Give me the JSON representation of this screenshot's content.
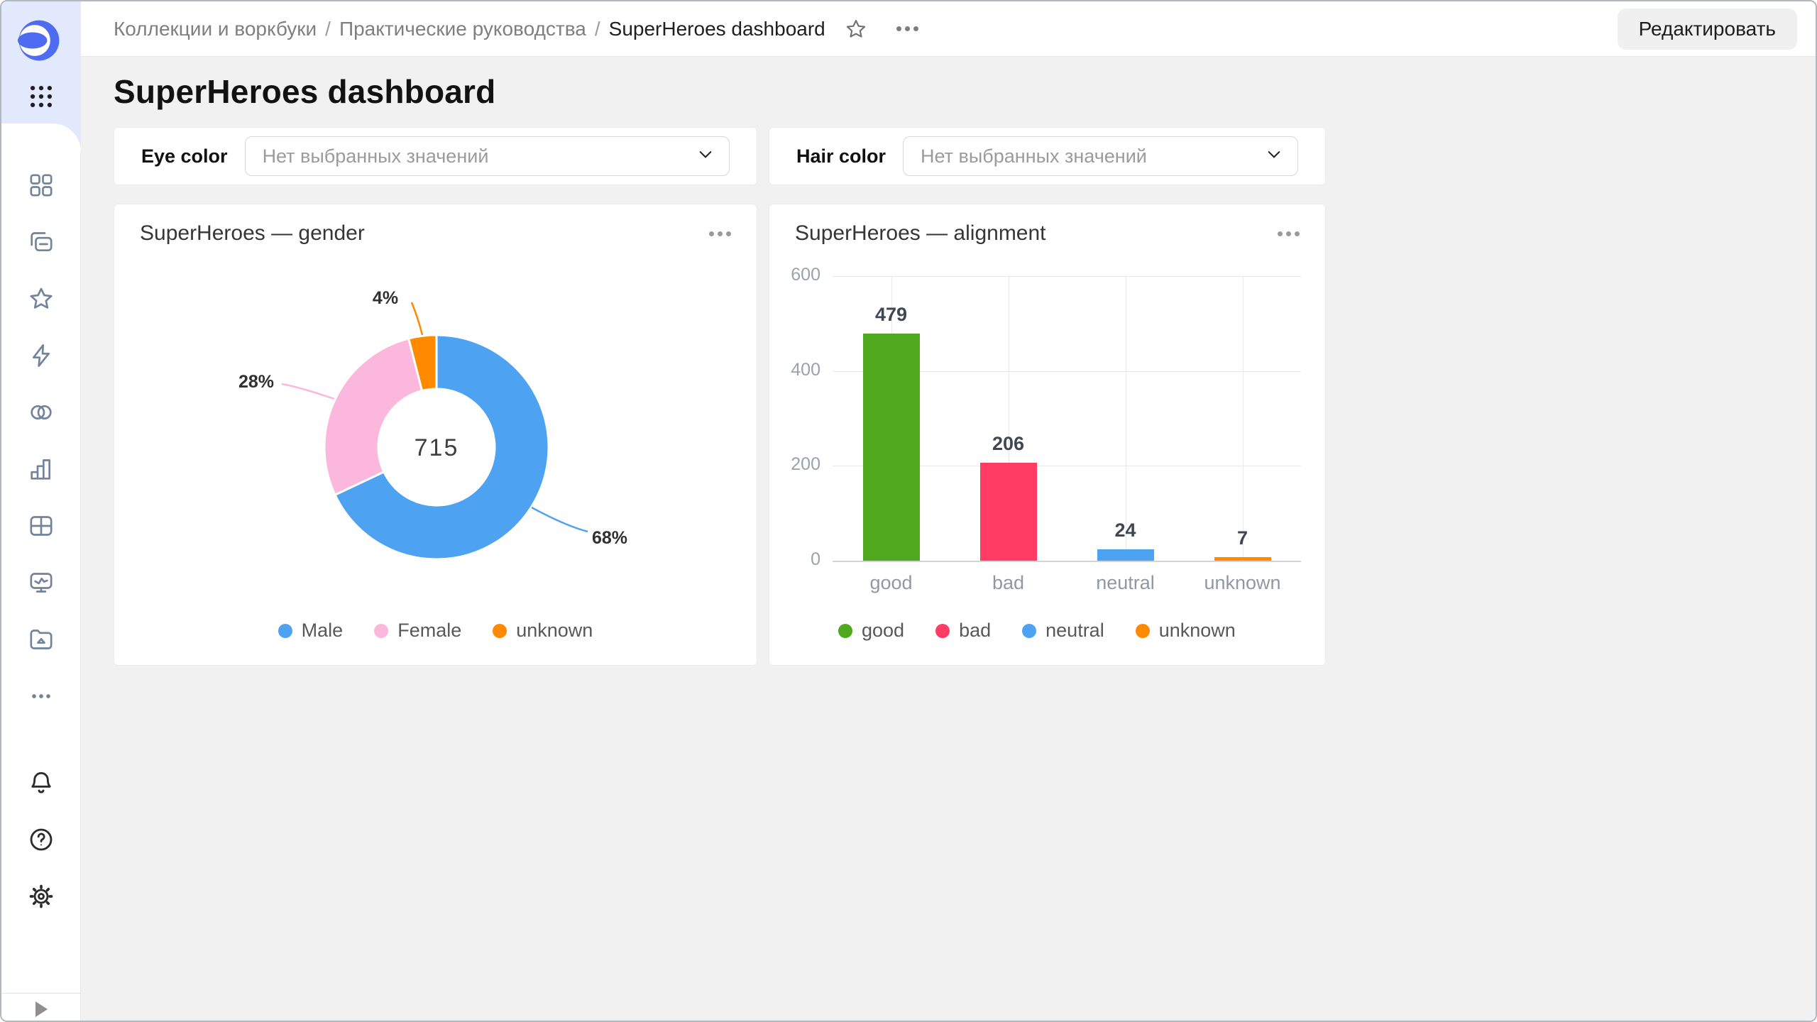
{
  "header": {
    "breadcrumb": [
      "Коллекции и воркбуки",
      "Практические руководства",
      "SuperHeroes dashboard"
    ],
    "separator": "/",
    "edit_button": "Редактировать"
  },
  "sidebar": {
    "icons": [
      "datalens-logo",
      "apps-grid",
      "navigation",
      "collections",
      "favorites",
      "connections",
      "datasets",
      "charts",
      "dashboards",
      "monitoring",
      "storage",
      "more",
      "notifications",
      "help",
      "settings",
      "expand-panel"
    ]
  },
  "page": {
    "title": "SuperHeroes dashboard"
  },
  "filters": [
    {
      "label": "Eye color",
      "placeholder": "Нет выбранных значений"
    },
    {
      "label": "Hair color",
      "placeholder": "Нет выбранных значений"
    }
  ],
  "chart_data": [
    {
      "type": "pie",
      "variant": "donut",
      "title": "SuperHeroes — gender",
      "labels": [
        "Male",
        "Female",
        "unknown"
      ],
      "values_pct": [
        68,
        28,
        4
      ],
      "center_total": "715",
      "colors": [
        "#4DA2F1",
        "#FCB8DC",
        "#FF8A00"
      ],
      "start_angle_deg": 0,
      "legend_position": "bottom"
    },
    {
      "type": "bar",
      "title": "SuperHeroes — alignment",
      "categories": [
        "good",
        "bad",
        "neutral",
        "unknown"
      ],
      "values": [
        479,
        206,
        24,
        7
      ],
      "colors": [
        "#50A81E",
        "#FF3D64",
        "#4DA2F1",
        "#FF8A00"
      ],
      "ylim": [
        0,
        600
      ],
      "yticks": [
        0,
        200,
        400,
        600
      ],
      "grid": true,
      "value_labels": true,
      "legend_position": "bottom"
    }
  ],
  "colors": {
    "accent_blue": "#4DA2F1",
    "logo_blue": "#4D6CF1",
    "sidebar_brand_bg": "#e3e9fc",
    "content_bg": "#f1f1f1",
    "icon_slate": "#71849b"
  }
}
